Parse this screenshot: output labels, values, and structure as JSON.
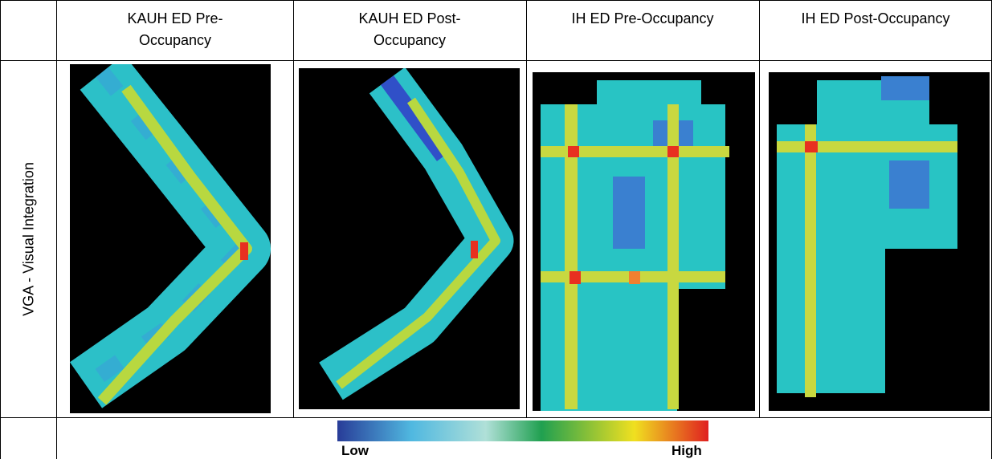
{
  "table": {
    "headers": [
      "KAUH ED Pre-Occupancy",
      "KAUH ED Post-Occupancy",
      "IH ED Pre-Occupancy",
      "IH ED Post-Occupancy"
    ],
    "rows": [
      {
        "label": "VGA - Visual Integration"
      }
    ]
  },
  "legend": {
    "low": "Low",
    "high": "High"
  }
}
